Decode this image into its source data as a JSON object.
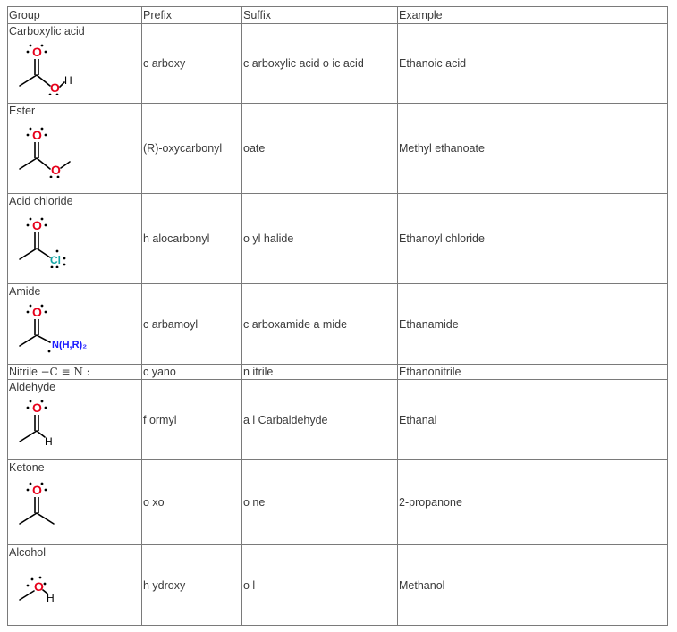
{
  "headers": {
    "group": "Group",
    "prefix": "Prefix",
    "suffix": "Suffix",
    "example": "Example"
  },
  "rows": [
    {
      "group": "Carboxylic acid",
      "prefix": "c arboxy",
      "suffix": "c arboxylic acid o ic acid",
      "example": "Ethanoic acid",
      "structure_atoms": {
        "oxygen": "O",
        "oxygen2": "O",
        "hydrogen": "H"
      }
    },
    {
      "group": "Ester",
      "prefix": "(R)-oxycarbonyl",
      "suffix": "oate",
      "example": "Methyl ethanoate",
      "structure_atoms": {
        "oxygen": "O",
        "oxygen2": "O"
      }
    },
    {
      "group": "Acid chloride",
      "prefix": "h alocarbonyl",
      "suffix": "o yl halide",
      "example": "Ethanoyl chloride",
      "structure_atoms": {
        "oxygen": "O",
        "chlorine": "Cl"
      }
    },
    {
      "group": "Amide",
      "prefix": "c arbamoyl",
      "suffix": "c arboxamide a mide",
      "example": "Ethanamide",
      "structure_atoms": {
        "oxygen": "O",
        "nitrogen": "N(H,R)₂"
      }
    },
    {
      "group": "Nitrile",
      "group_formula": "−C ≡ N :",
      "prefix": "c yano",
      "suffix": "n itrile",
      "example": "Ethanonitrile"
    },
    {
      "group": "Aldehyde",
      "prefix": "f ormyl",
      "suffix": "a l Carbaldehyde",
      "example": "Ethanal",
      "structure_atoms": {
        "oxygen": "O",
        "hydrogen": "H"
      }
    },
    {
      "group": "Ketone",
      "prefix": "o xo",
      "suffix": "o ne",
      "example": "2-propanone",
      "structure_atoms": {
        "oxygen": "O"
      }
    },
    {
      "group": "Alcohol",
      "prefix": "h ydroxy",
      "suffix": "o l",
      "example": "Methanol",
      "structure_atoms": {
        "oxygen": "O",
        "hydrogen": "H"
      }
    }
  ],
  "colors": {
    "oxygen": "#e6001a",
    "chlorine": "#12a5a5",
    "nitrogen": "#1a1aff",
    "grid": "#7a7a7a",
    "text": "#3a3a3a"
  }
}
